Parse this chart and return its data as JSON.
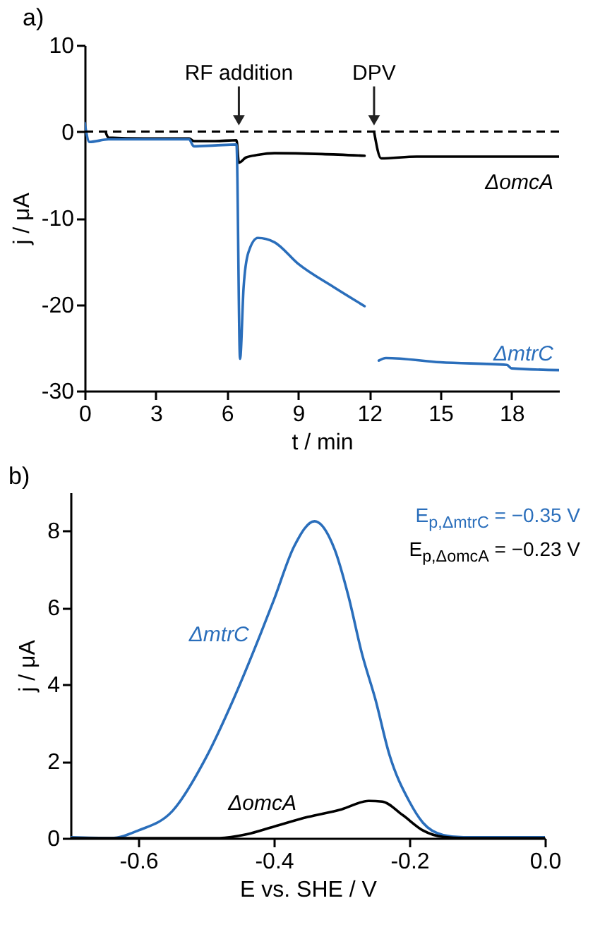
{
  "chart_data": [
    {
      "type": "line",
      "title": "a)",
      "xlabel": "t / min",
      "ylabel": "j / μA",
      "xlim": [
        0,
        20
      ],
      "xticks": [
        0,
        3,
        6,
        9,
        12,
        15,
        18
      ],
      "ylim": [
        -30,
        10
      ],
      "yticks": [
        -30,
        -20,
        -10,
        0,
        10
      ],
      "series": [
        {
          "name": "ΔomcA",
          "color": "#000000",
          "x": [
            0.9,
            1.0,
            2.5,
            4.4,
            4.6,
            5.5,
            6.4,
            6.5,
            6.8,
            7.3,
            8.0,
            10.0,
            11.8,
            12.0,
            12.2,
            12.5,
            14.0,
            17.0,
            20.0
          ],
          "values": [
            -0.2,
            -0.7,
            -0.8,
            -0.8,
            -1.1,
            -1.1,
            -1.0,
            -3.6,
            -3.0,
            -2.7,
            -2.5,
            -2.6,
            -2.8,
            null,
            0.0,
            -3.1,
            -2.9,
            -2.9,
            -2.9
          ]
        },
        {
          "name": "ΔmtrC",
          "color": "#2a6ebb",
          "x": [
            0.0,
            0.2,
            1.0,
            2.5,
            4.4,
            4.6,
            5.5,
            6.4,
            6.55,
            6.7,
            6.9,
            7.3,
            8.0,
            9.0,
            10.5,
            11.8,
            12.1,
            12.4,
            12.7,
            15.0,
            17.8,
            18.0,
            20.0
          ],
          "values": [
            1.0,
            -1.2,
            -0.9,
            -0.9,
            -0.9,
            -1.7,
            -1.6,
            -1.5,
            -26.3,
            -18.0,
            -14.0,
            -12.3,
            -12.8,
            -15.3,
            -18.0,
            -20.2,
            null,
            -26.5,
            -26.2,
            -26.7,
            -27.0,
            -27.4,
            -27.6
          ]
        }
      ],
      "ref_lines": [
        {
          "axis": "y",
          "value": 0,
          "color": "#000000",
          "line_style": "dashed"
        }
      ],
      "annotations": [
        {
          "text": "RF addition",
          "x": 6.5,
          "y": 0
        },
        {
          "text": "DPV",
          "x": 12.2,
          "y": 0
        }
      ]
    },
    {
      "type": "line",
      "title": "b)",
      "xlabel": "E vs. SHE / V",
      "ylabel": "j / μA",
      "xlim": [
        -0.7,
        0
      ],
      "xticks": [
        -0.6,
        -0.4,
        -0.2,
        {
          "value": 0,
          "label": "0.0"
        }
      ],
      "ylim": [
        0,
        9
      ],
      "yticks": [
        0,
        2,
        4,
        6,
        8
      ],
      "series": [
        {
          "name": "ΔmtrC",
          "color": "#2a6ebb",
          "x": [
            -0.7,
            -0.64,
            -0.6,
            -0.55,
            -0.5,
            -0.46,
            -0.42,
            -0.4,
            -0.37,
            -0.34,
            -0.31,
            -0.29,
            -0.27,
            -0.25,
            -0.23,
            -0.2,
            -0.18,
            -0.15,
            -0.12,
            0.0
          ],
          "values": [
            0.02,
            0.0,
            0.2,
            0.7,
            2.1,
            3.6,
            5.3,
            6.2,
            7.6,
            8.25,
            7.5,
            6.3,
            4.8,
            3.6,
            2.2,
            0.95,
            0.4,
            0.08,
            0.02,
            0.02
          ]
        },
        {
          "name": "ΔomcA",
          "color": "#000000",
          "x": [
            -0.7,
            -0.48,
            -0.44,
            -0.4,
            -0.35,
            -0.3,
            -0.26,
            -0.24,
            -0.21,
            -0.18,
            -0.15,
            -0.12,
            0.0
          ],
          "values": [
            0.0,
            0.0,
            0.1,
            0.3,
            0.55,
            0.75,
            0.97,
            0.95,
            0.6,
            0.2,
            0.03,
            0.0,
            0.0
          ]
        }
      ],
      "annotations": [
        "E$_{p,ΔmtrC}$ = −0.35 V",
        "E$_{p,ΔomcA}$ = −0.23 V"
      ]
    }
  ]
}
